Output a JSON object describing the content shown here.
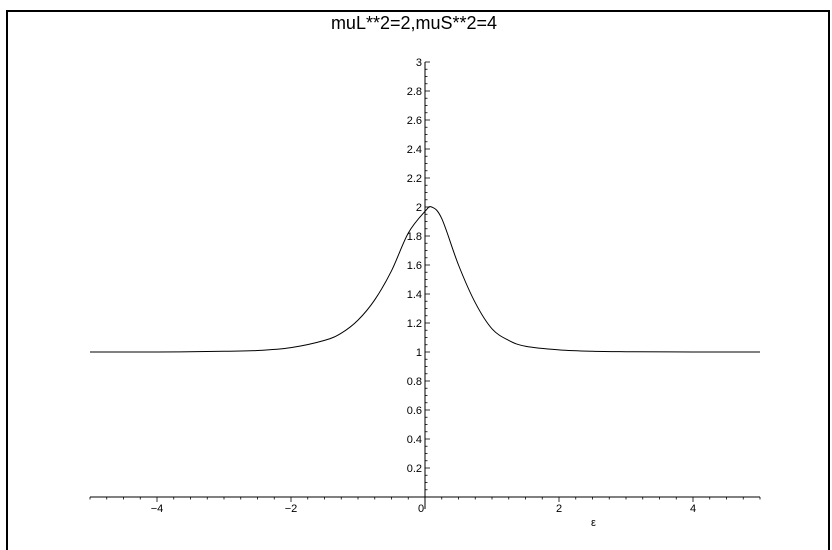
{
  "chart_data": {
    "type": "line",
    "title": "muL**2=2,muS**2=4",
    "xlabel": "ε",
    "ylabel": "",
    "xlim": [
      -5,
      5
    ],
    "ylim": [
      0,
      3
    ],
    "grid": false,
    "x_ticks": [
      -4,
      -2,
      0,
      2,
      4
    ],
    "x_tick_labels": [
      "−4",
      "−2",
      "0",
      "2",
      "4"
    ],
    "y_ticks": [
      0.2,
      0.4,
      0.6,
      0.8,
      1,
      1.2,
      1.4,
      1.6,
      1.8,
      2,
      2.2,
      2.4,
      2.6,
      2.8,
      3
    ],
    "y_tick_labels": [
      "0.2",
      "0.4",
      "0.6",
      "0.8",
      "1",
      "1.2",
      "1.4",
      "1.6",
      "1.8",
      "2",
      "2.2",
      "2.4",
      "2.6",
      "2.8",
      "3"
    ],
    "series": [
      {
        "color": "#000000",
        "x": [
          -5,
          -4,
          -3,
          -2.5,
          -2,
          -1.5,
          -1.25,
          -1,
          -0.75,
          -0.5,
          -0.25,
          0,
          0.1,
          0.25,
          0.5,
          0.75,
          1,
          1.25,
          1.5,
          2,
          2.5,
          3,
          4,
          5
        ],
        "y": [
          1,
          1,
          1.005,
          1.01,
          1.03,
          1.08,
          1.13,
          1.22,
          1.36,
          1.56,
          1.82,
          1.97,
          2.0,
          1.92,
          1.6,
          1.34,
          1.16,
          1.08,
          1.04,
          1.015,
          1.005,
          1.002,
          1,
          1
        ]
      }
    ]
  }
}
